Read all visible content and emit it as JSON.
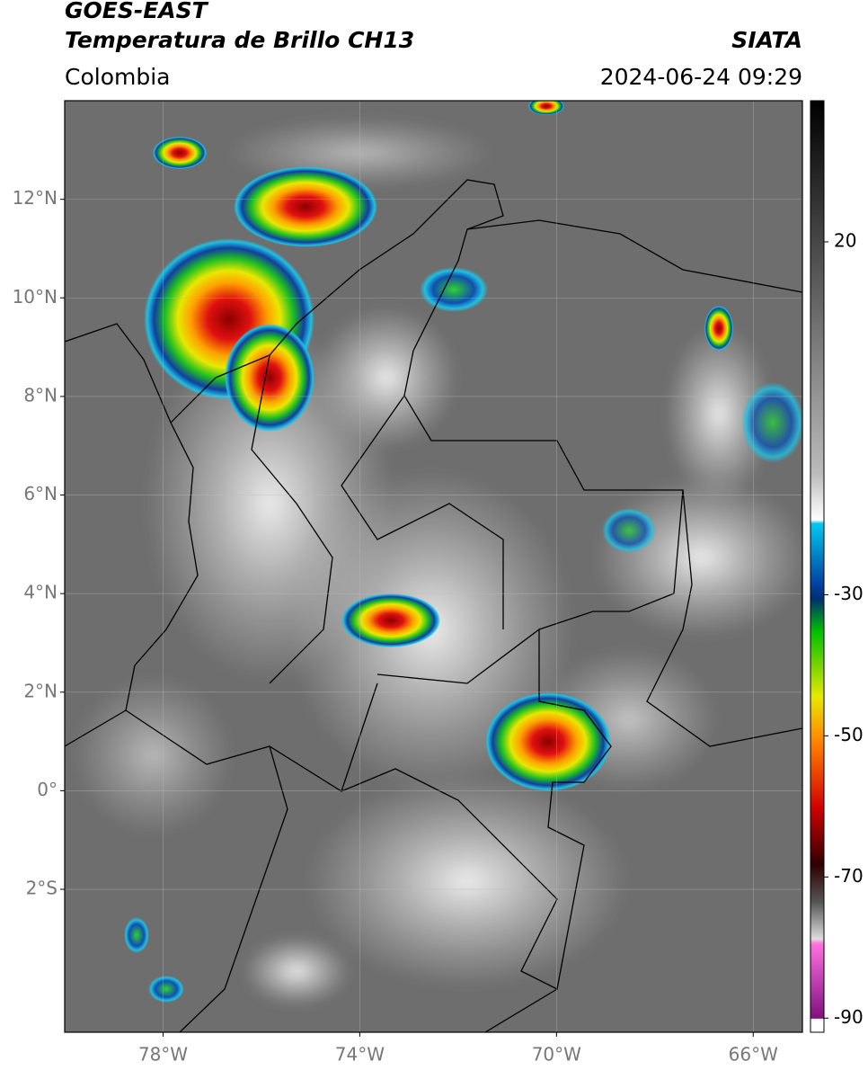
{
  "header": {
    "title_line1": "GOES-EAST",
    "title_line2": "Temperatura de Brillo CH13",
    "source": "SIATA",
    "region": "Colombia",
    "timestamp": "2024-06-24 09:29"
  },
  "map": {
    "lon_range": [
      -80,
      -65
    ],
    "lat_range": [
      -4.9,
      14
    ],
    "lat_ticks": [
      {
        "value": 12,
        "label": "12°N"
      },
      {
        "value": 10,
        "label": "10°N"
      },
      {
        "value": 8,
        "label": "8°N"
      },
      {
        "value": 6,
        "label": "6°N"
      },
      {
        "value": 4,
        "label": "4°N"
      },
      {
        "value": 2,
        "label": "2°N"
      },
      {
        "value": 0,
        "label": "0°"
      },
      {
        "value": -2,
        "label": "2°S"
      }
    ],
    "lon_ticks": [
      {
        "value": -78,
        "label": "78°W"
      },
      {
        "value": -74,
        "label": "74°W"
      },
      {
        "value": -70,
        "label": "70°W"
      },
      {
        "value": -66,
        "label": "66°W"
      }
    ]
  },
  "colorbar": {
    "range": [
      -92,
      40
    ],
    "ticks": [
      20,
      -30,
      -50,
      -70,
      -90
    ]
  }
}
